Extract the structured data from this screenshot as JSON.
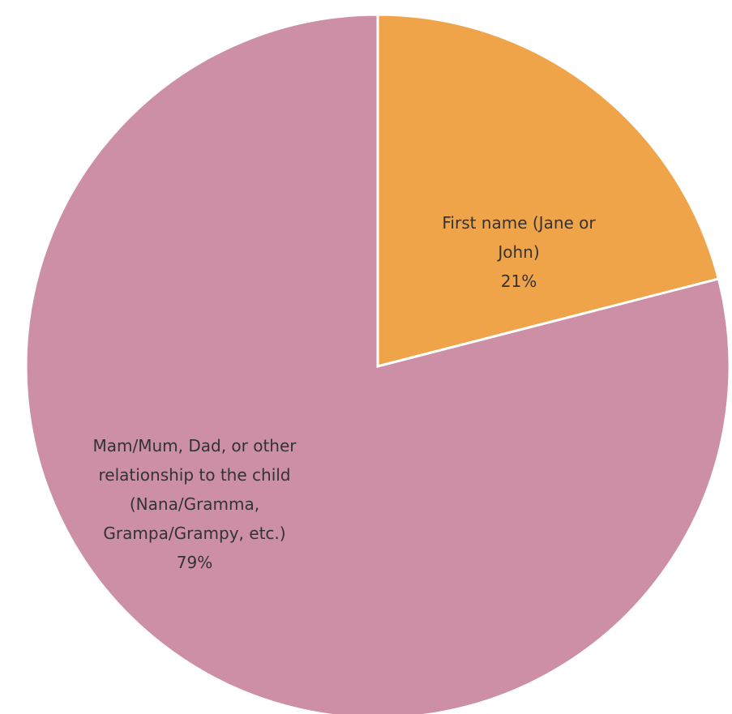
{
  "chart_data": {
    "type": "pie",
    "categories": [
      "First name (Jane or John)",
      "Mam/Mum, Dad, or other relationship to the child (Nana/Gramma, Grampa/Grampy, etc.)"
    ],
    "values": [
      21,
      79
    ],
    "value_labels": [
      "21%",
      "79%"
    ],
    "colors": [
      "#f0a44a",
      "#cc8fa5"
    ]
  }
}
